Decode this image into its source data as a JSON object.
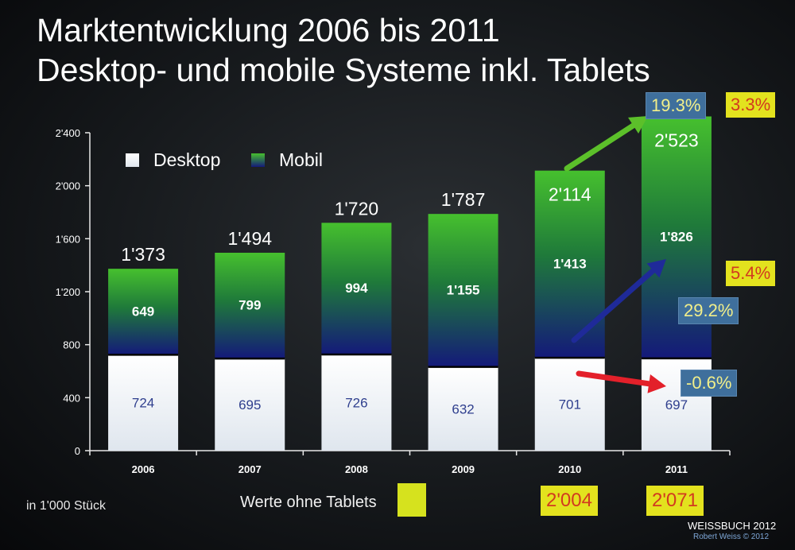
{
  "title_line1": "Marktentwicklung 2006 bis 2011",
  "title_line2": "Desktop- und mobile Systeme inkl. Tablets",
  "unit_note": "in 1'000 Stück",
  "without_tablets_label": "Werte ohne Tablets",
  "without_tablets_values": {
    "2010": "2'004",
    "2011": "2'071"
  },
  "credit_main": "WEISSBUCH 2012",
  "credit_sub": "Robert Weiss © 2012",
  "growth": {
    "total_change": "19.3%",
    "total_change_without_tablets": "3.3%",
    "mobile_change": "29.2%",
    "mobile_change_without_tablets": "5.4%",
    "desktop_change": "-0.6%"
  },
  "colors": {
    "desktop": "#ffffff",
    "mobile_top": "#46c02e",
    "mobile_bottom": "#14197a",
    "arrow_green": "#5cc02a",
    "arrow_blue": "#1f2a99",
    "arrow_red": "#e3202a",
    "highlight_yellow": "#e3e21e",
    "highlight_blue": "#3f6f9c"
  },
  "chart_data": {
    "type": "bar",
    "stacked": true,
    "categories": [
      "2006",
      "2007",
      "2008",
      "2009",
      "2010",
      "2011"
    ],
    "series": [
      {
        "name": "Desktop",
        "values": [
          724,
          695,
          726,
          632,
          701,
          697
        ],
        "labels": [
          "724",
          "695",
          "726",
          "632",
          "701",
          "697"
        ]
      },
      {
        "name": "Mobil",
        "values": [
          649,
          799,
          994,
          1155,
          1413,
          1826
        ],
        "labels": [
          "649",
          "799",
          "994",
          "1'155",
          "1'413",
          "1'826"
        ]
      }
    ],
    "totals": [
      1373,
      1494,
      1720,
      1787,
      2114,
      2523
    ],
    "total_labels": [
      "1'373",
      "1'494",
      "1'720",
      "1'787",
      "2'114",
      "2'523"
    ],
    "yticks": [
      0,
      400,
      800,
      1200,
      1600,
      2000,
      2400
    ],
    "ytick_labels": [
      "0",
      "400",
      "800",
      "1'200",
      "1'600",
      "2'000",
      "2'400"
    ],
    "ylim": [
      0,
      2400
    ],
    "legend": [
      "Desktop",
      "Mobil"
    ],
    "legend_position": "top-left",
    "grid": false
  }
}
